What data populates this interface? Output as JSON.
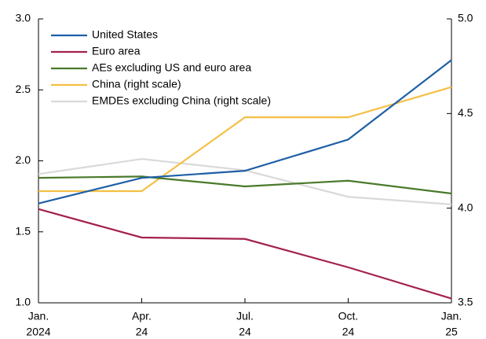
{
  "chart_data": {
    "type": "line",
    "categories": [
      [
        "Jan.",
        "2024"
      ],
      [
        "Apr.",
        "24"
      ],
      [
        "Jul.",
        "24"
      ],
      [
        "Oct.",
        "24"
      ],
      [
        "Jan.",
        "25"
      ]
    ],
    "series": [
      {
        "name": "United States",
        "color": "#1f5fa6",
        "values": [
          1.7,
          1.88,
          1.93,
          2.15,
          2.71
        ]
      },
      {
        "name": "Euro area",
        "color": "#a3214f",
        "values": [
          1.66,
          1.46,
          1.45,
          1.25,
          1.03
        ]
      },
      {
        "name": "AEs excluding US and euro area",
        "color": "#4a7a2a",
        "values": [
          1.88,
          1.89,
          1.82,
          1.86,
          1.77
        ]
      },
      {
        "name": "China (right scale)",
        "color": "#f4bf45",
        "axis": "y2",
        "values": [
          4.09,
          4.09,
          4.48,
          4.48,
          4.64
        ]
      },
      {
        "name": "EMDEs excluding China (right scale)",
        "color": "#d9d9d9",
        "axis": "y2",
        "values": [
          4.18,
          4.26,
          4.2,
          4.06,
          4.02
        ]
      }
    ],
    "ylim": [
      1.0,
      3.0
    ],
    "yticks": [
      {
        "value": 1.0,
        "label": "1.0"
      },
      {
        "value": 1.5,
        "label": "1.5"
      },
      {
        "value": 2.0,
        "label": "2.0"
      },
      {
        "value": 2.5,
        "label": "2.5"
      },
      {
        "value": 3.0,
        "label": "3.0"
      }
    ],
    "y2lim": [
      3.5,
      5.0
    ],
    "y2ticks": [
      {
        "value": 3.5,
        "label": "3.5"
      },
      {
        "value": 4.0,
        "label": "4.0"
      },
      {
        "value": 4.5,
        "label": "4.5"
      },
      {
        "value": 5.0,
        "label": "5.0"
      }
    ],
    "grid": false,
    "legend": "top-left"
  }
}
